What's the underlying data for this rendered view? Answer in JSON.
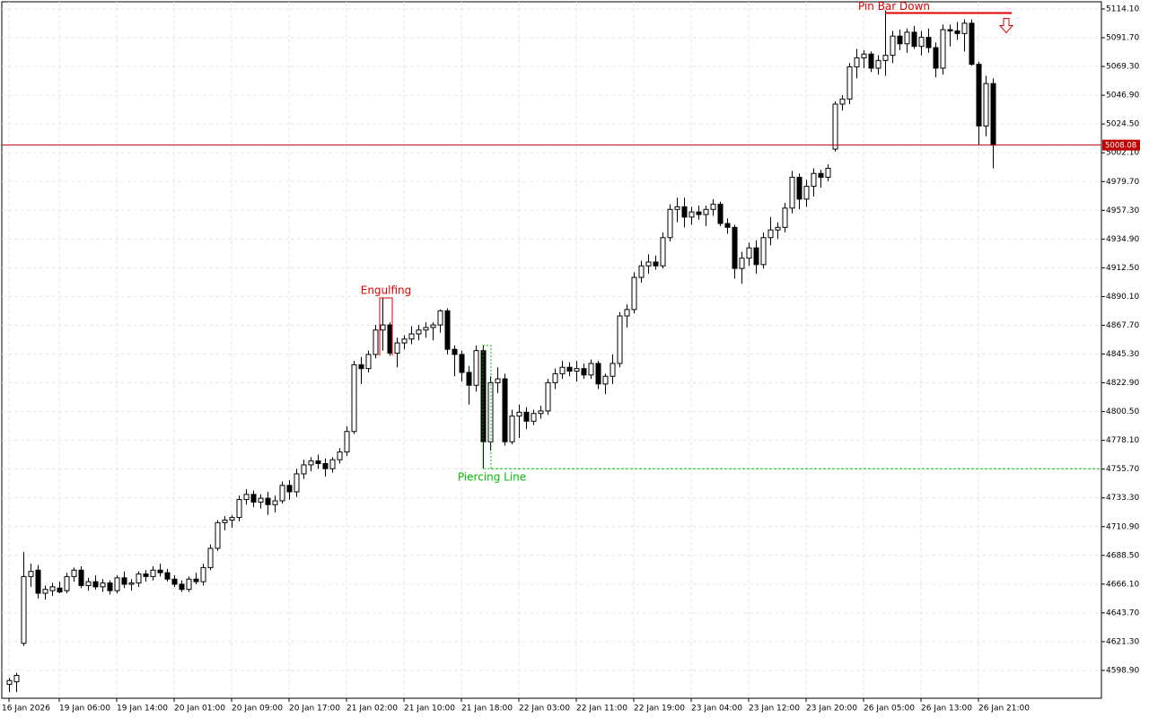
{
  "chart_data": {
    "type": "candlestick",
    "categories": [
      "16 Jan 2026",
      null,
      null,
      null,
      null,
      null,
      null,
      "19 Jan 06:00",
      null,
      null,
      null,
      null,
      null,
      null,
      null,
      "19 Jan 14:00",
      null,
      null,
      null,
      null,
      null,
      null,
      null,
      "20 Jan 01:00",
      null,
      null,
      null,
      null,
      null,
      null,
      null,
      "20 Jan 09:00",
      null,
      null,
      null,
      null,
      null,
      null,
      null,
      "20 Jan 17:00",
      null,
      null,
      null,
      null,
      null,
      null,
      null,
      "21 Jan 02:00",
      null,
      null,
      null,
      null,
      null,
      null,
      null,
      "21 Jan 10:00",
      null,
      null,
      null,
      null,
      null,
      null,
      null,
      "21 Jan 18:00",
      null,
      null,
      null,
      null,
      null,
      null,
      null,
      "22 Jan 03:00",
      null,
      null,
      null,
      null,
      null,
      null,
      null,
      "22 Jan 11:00",
      null,
      null,
      null,
      null,
      null,
      null,
      null,
      "22 Jan 19:00",
      null,
      null,
      null,
      null,
      null,
      null,
      null,
      "23 Jan 04:00",
      null,
      null,
      null,
      null,
      null,
      null,
      null,
      "23 Jan 12:00",
      null,
      null,
      null,
      null,
      null,
      null,
      null,
      "23 Jan 20:00",
      null,
      null,
      null,
      null,
      null,
      null,
      null,
      "26 Jan 05:00",
      null,
      null,
      null,
      null,
      null,
      null,
      null,
      "26 Jan 13:00",
      null,
      null,
      null,
      null,
      null,
      null,
      null,
      "26 Jan 21:00",
      null,
      null
    ],
    "open": [
      4588,
      4590,
      4620,
      4672,
      4677,
      4659,
      4661,
      4663,
      4661,
      4672,
      4677,
      4665,
      4668,
      4664,
      4667,
      4661,
      4671,
      4666,
      4667,
      4674,
      4672,
      4677,
      4675,
      4670,
      4666,
      4662,
      4670,
      4668,
      4679,
      4694,
      4714,
      4716,
      4718,
      4732,
      4736,
      4730,
      4733,
      4728,
      4731,
      4743,
      4738,
      4752,
      4759,
      4762,
      4760,
      4756,
      4763,
      4769,
      4785,
      4837,
      4834,
      4845,
      4864,
      4868,
      4846,
      4854,
      4857,
      4861,
      4864,
      4866,
      4868,
      4879,
      4849,
      4845,
      4831,
      4821,
      4848,
      4777,
      4823,
      4826,
      4777,
      4797,
      4800,
      4793,
      4799,
      4801,
      4823,
      4830,
      4835,
      4832,
      4834,
      4829,
      4838,
      4822,
      4828,
      4838,
      4875,
      4880,
      4905,
      4914,
      4917,
      4914,
      4936,
      4958,
      4960,
      4952,
      4956,
      4954,
      4958,
      4962,
      4947,
      4944,
      4912,
      4920,
      4928,
      4915,
      4936,
      4942,
      4944,
      4959,
      4983,
      4966,
      4976,
      4986,
      4983,
      5005,
      5040,
      5044,
      5069,
      5076,
      5079,
      5068,
      5074,
      5078,
      5093,
      5087,
      5096,
      5085,
      5092,
      5084,
      5068,
      5098,
      5097,
      5095,
      5103,
      5071,
      5023,
      5056
    ],
    "high": [
      4593,
      4597,
      4691,
      4682,
      4681,
      4665,
      4667,
      4668,
      4675,
      4679,
      4680,
      4671,
      4673,
      4670,
      4669,
      4673,
      4676,
      4670,
      4676,
      4677,
      4680,
      4682,
      4678,
      4673,
      4669,
      4672,
      4675,
      4682,
      4697,
      4716,
      4719,
      4720,
      4735,
      4740,
      4739,
      4736,
      4738,
      4735,
      4746,
      4747,
      4756,
      4763,
      4765,
      4767,
      4764,
      4765,
      4772,
      4789,
      4840,
      4843,
      4848,
      4868,
      4889,
      4870,
      4858,
      4860,
      4867,
      4868,
      4870,
      4870,
      4880,
      4881,
      4852,
      4848,
      4836,
      4852,
      4852,
      4828,
      4835,
      4830,
      4802,
      4806,
      4804,
      4802,
      4805,
      4826,
      4834,
      4840,
      4839,
      4840,
      4838,
      4841,
      4840,
      4830,
      4845,
      4878,
      4884,
      4909,
      4918,
      4923,
      4922,
      4940,
      4962,
      4967,
      4967,
      4960,
      4961,
      4961,
      4966,
      4964,
      4951,
      4946,
      4925,
      4932,
      4934,
      4940,
      4952,
      4948,
      4963,
      4988,
      4986,
      4981,
      4990,
      4989,
      4993,
      5042,
      5047,
      5072,
      5083,
      5082,
      5081,
      5078,
      5113,
      5097,
      5098,
      5099,
      5101,
      5097,
      5099,
      5088,
      5102,
      5102,
      5104,
      5106,
      5106,
      5073,
      5062,
      5060
    ],
    "low": [
      4582,
      4582,
      4618,
      4664,
      4655,
      4654,
      4657,
      4659,
      4659,
      4668,
      4663,
      4661,
      4662,
      4660,
      4658,
      4659,
      4663,
      4661,
      4664,
      4668,
      4669,
      4672,
      4668,
      4664,
      4660,
      4660,
      4666,
      4665,
      4677,
      4692,
      4708,
      4710,
      4715,
      4728,
      4726,
      4725,
      4720,
      4722,
      4729,
      4732,
      4734,
      4748,
      4754,
      4756,
      4750,
      4753,
      4760,
      4766,
      4783,
      4822,
      4831,
      4842,
      4848,
      4844,
      4835,
      4849,
      4853,
      4856,
      4858,
      4856,
      4862,
      4845,
      4828,
      4824,
      4806,
      4816,
      4756,
      4770,
      4815,
      4774,
      4775,
      4780,
      4787,
      4790,
      4795,
      4798,
      4818,
      4826,
      4828,
      4824,
      4826,
      4826,
      4818,
      4814,
      4822,
      4835,
      4866,
      4877,
      4901,
      4908,
      4911,
      4912,
      4933,
      4948,
      4944,
      4946,
      4950,
      4945,
      4953,
      4945,
      4939,
      4904,
      4900,
      4914,
      4908,
      4912,
      4930,
      4935,
      4940,
      4955,
      4958,
      4960,
      4968,
      4975,
      4980,
      5003,
      5035,
      5040,
      5060,
      5068,
      5065,
      5063,
      5062,
      5072,
      5082,
      5080,
      5083,
      5078,
      5080,
      5061,
      5063,
      5085,
      5090,
      5081,
      5070,
      5008,
      5015,
      4990
    ],
    "close": [
      4591,
      4595,
      4672,
      4676,
      4659,
      4662,
      4664,
      4660,
      4672,
      4677,
      4665,
      4668,
      4664,
      4667,
      4661,
      4671,
      4666,
      4667,
      4674,
      4672,
      4677,
      4675,
      4670,
      4666,
      4662,
      4670,
      4668,
      4679,
      4694,
      4714,
      4716,
      4718,
      4732,
      4736,
      4730,
      4733,
      4728,
      4731,
      4743,
      4738,
      4752,
      4759,
      4762,
      4760,
      4756,
      4763,
      4769,
      4785,
      4837,
      4834,
      4845,
      4864,
      4868,
      4846,
      4854,
      4857,
      4861,
      4864,
      4866,
      4868,
      4879,
      4849,
      4845,
      4831,
      4821,
      4848,
      4777,
      4823,
      4826,
      4777,
      4797,
      4800,
      4793,
      4799,
      4801,
      4823,
      4830,
      4835,
      4832,
      4834,
      4829,
      4838,
      4822,
      4828,
      4838,
      4875,
      4880,
      4905,
      4914,
      4917,
      4914,
      4936,
      4958,
      4960,
      4952,
      4956,
      4954,
      4958,
      4962,
      4947,
      4944,
      4912,
      4920,
      4928,
      4915,
      4936,
      4942,
      4944,
      4959,
      4983,
      4966,
      4976,
      4986,
      4983,
      4990,
      5040,
      5044,
      5069,
      5076,
      5079,
      5068,
      5074,
      5078,
      5093,
      5087,
      5096,
      5085,
      5092,
      5084,
      5068,
      5098,
      5097,
      5095,
      5103,
      5071,
      5023,
      5056,
      5008.08
    ],
    "up_color": "#ffffff",
    "down_color": "#000000",
    "ylim": [
      4577.2,
      5121.1
    ],
    "yticks": [
      {
        "value": 5114.1,
        "label": "5114.10"
      },
      {
        "value": 5091.7,
        "label": "5091.70"
      },
      {
        "value": 5069.3,
        "label": "5069.30"
      },
      {
        "value": 5046.9,
        "label": "5046.90"
      },
      {
        "value": 5024.5,
        "label": "5024.50"
      },
      {
        "value": 5002.1,
        "label": "5002.10"
      },
      {
        "value": 4979.7,
        "label": "4979.70"
      },
      {
        "value": 4957.3,
        "label": "4957.30"
      },
      {
        "value": 4934.9,
        "label": "4934.90"
      },
      {
        "value": 4912.5,
        "label": "4912.50"
      },
      {
        "value": 4890.1,
        "label": "4890.10"
      },
      {
        "value": 4867.7,
        "label": "4867.70"
      },
      {
        "value": 4845.3,
        "label": "4845.30"
      },
      {
        "value": 4822.9,
        "label": "4822.90"
      },
      {
        "value": 4800.5,
        "label": "4800.50"
      },
      {
        "value": 4778.1,
        "label": "4778.10"
      },
      {
        "value": 4755.7,
        "label": "4755.70"
      },
      {
        "value": 4733.3,
        "label": "4733.30"
      },
      {
        "value": 4710.9,
        "label": "4710.90"
      },
      {
        "value": 4688.5,
        "label": "4688.50"
      },
      {
        "value": 4666.1,
        "label": "4666.10"
      },
      {
        "value": 4643.7,
        "label": "4643.70"
      },
      {
        "value": 4621.3,
        "label": "4621.30"
      },
      {
        "value": 4598.9,
        "label": "4598.90"
      }
    ],
    "grid": true,
    "last_price": 5008.08,
    "last_color": "#c00000",
    "annotations": [
      {
        "text": "Engulfing",
        "color": "#e00000"
      },
      {
        "text": "Piercing Line",
        "color": "#00c000",
        "level": 4756
      },
      {
        "text": "Pin Bar Down",
        "color": "#e00000",
        "level": 5111
      }
    ]
  }
}
